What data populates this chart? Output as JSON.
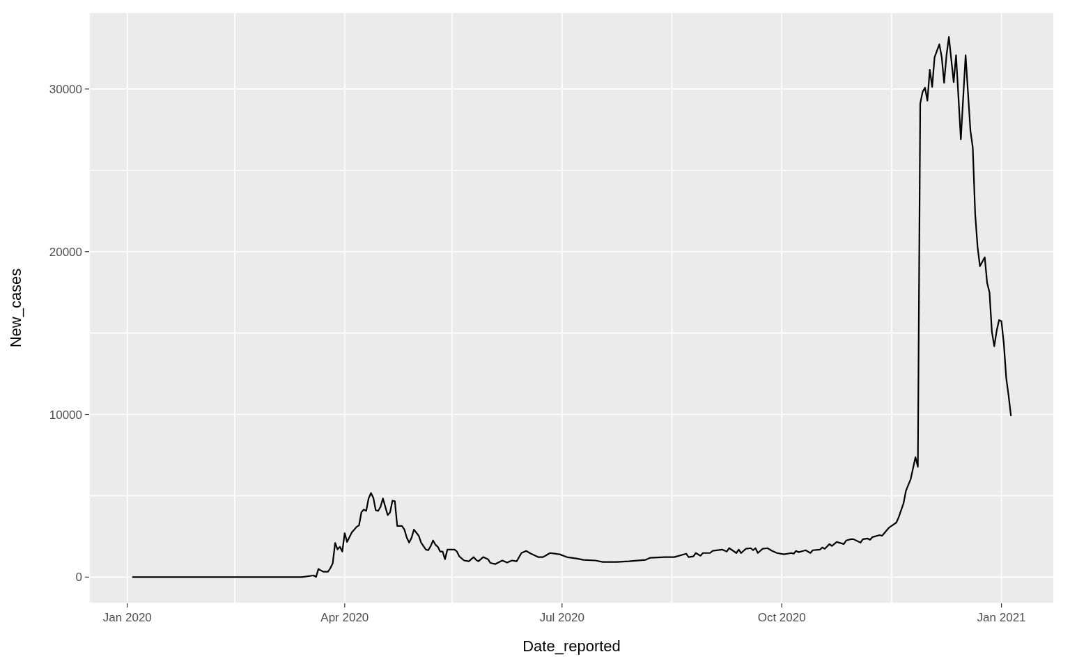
{
  "chart_data": {
    "type": "line",
    "xlabel": "Date_reported",
    "ylabel": "New_cases",
    "color": "#000000",
    "grid": true,
    "marker": "none",
    "line_style": "solid",
    "xlim": [
      "2019-12-16",
      "2021-01-23"
    ],
    "xticks": [
      {
        "value": "2020-01-01",
        "label": "Jan 2020"
      },
      {
        "value": "2020-02-15",
        "label": null
      },
      {
        "value": "2020-04-01",
        "label": "Apr 2020"
      },
      {
        "value": "2020-05-16",
        "label": null
      },
      {
        "value": "2020-07-01",
        "label": "Jul 2020"
      },
      {
        "value": "2020-08-16",
        "label": null
      },
      {
        "value": "2020-10-01",
        "label": "Oct 2020"
      },
      {
        "value": "2020-11-16",
        "label": null
      },
      {
        "value": "2021-01-01",
        "label": "Jan 2021"
      }
    ],
    "ylim": [
      -1610,
      34700
    ],
    "yticks": [
      0,
      {
        "value": 5000,
        "label": null
      },
      10000,
      {
        "value": 15000,
        "label": null
      },
      20000,
      {
        "value": 25000,
        "label": null
      },
      30000
    ],
    "x": [
      "2020-01-03",
      "2020-03-14",
      "2020-03-19",
      "2020-03-20",
      "2020-03-21",
      "2020-03-23",
      "2020-03-25",
      "2020-03-26",
      "2020-03-27",
      "2020-03-28",
      "2020-03-29",
      "2020-03-30",
      "2020-03-31",
      "2020-04-01",
      "2020-04-02",
      "2020-04-04",
      "2020-04-06",
      "2020-04-07",
      "2020-04-08",
      "2020-04-09",
      "2020-04-10",
      "2020-04-11",
      "2020-04-12",
      "2020-04-13",
      "2020-04-14",
      "2020-04-15",
      "2020-04-16",
      "2020-04-17",
      "2020-04-19",
      "2020-04-20",
      "2020-04-21",
      "2020-04-22",
      "2020-04-23",
      "2020-04-25",
      "2020-04-26",
      "2020-04-27",
      "2020-04-28",
      "2020-04-29",
      "2020-04-30",
      "2020-05-02",
      "2020-05-03",
      "2020-05-04",
      "2020-05-05",
      "2020-05-06",
      "2020-05-07",
      "2020-05-08",
      "2020-05-09",
      "2020-05-10",
      "2020-05-11",
      "2020-05-12",
      "2020-05-13",
      "2020-05-14",
      "2020-05-16",
      "2020-05-17",
      "2020-05-18",
      "2020-05-19",
      "2020-05-21",
      "2020-05-23",
      "2020-05-25",
      "2020-05-26",
      "2020-05-27",
      "2020-05-29",
      "2020-05-31",
      "2020-06-01",
      "2020-06-03",
      "2020-06-06",
      "2020-06-08",
      "2020-06-10",
      "2020-06-12",
      "2020-06-14",
      "2020-06-16",
      "2020-06-18",
      "2020-06-21",
      "2020-06-23",
      "2020-06-24",
      "2020-06-26",
      "2020-06-28",
      "2020-06-30",
      "2020-07-03",
      "2020-07-07",
      "2020-07-10",
      "2020-07-15",
      "2020-07-18",
      "2020-07-24",
      "2020-07-29",
      "2020-08-05",
      "2020-08-07",
      "2020-08-13",
      "2020-08-17",
      "2020-08-22",
      "2020-08-23",
      "2020-08-25",
      "2020-08-26",
      "2020-08-28",
      "2020-08-29",
      "2020-09-01",
      "2020-09-02",
      "2020-09-06",
      "2020-09-08",
      "2020-09-09",
      "2020-09-12",
      "2020-09-13",
      "2020-09-14",
      "2020-09-16",
      "2020-09-18",
      "2020-09-19",
      "2020-09-20",
      "2020-09-21",
      "2020-09-23",
      "2020-09-25",
      "2020-09-27",
      "2020-09-29",
      "2020-10-02",
      "2020-10-05",
      "2020-10-06",
      "2020-10-07",
      "2020-10-08",
      "2020-10-10",
      "2020-10-11",
      "2020-10-13",
      "2020-10-14",
      "2020-10-17",
      "2020-10-18",
      "2020-10-19",
      "2020-10-21",
      "2020-10-22",
      "2020-10-24",
      "2020-10-27",
      "2020-10-28",
      "2020-10-30",
      "2020-10-31",
      "2020-11-03",
      "2020-11-04",
      "2020-11-06",
      "2020-11-07",
      "2020-11-08",
      "2020-11-11",
      "2020-11-12",
      "2020-11-15",
      "2020-11-18",
      "2020-11-19",
      "2020-11-21",
      "2020-11-22",
      "2020-11-24",
      "2020-11-26",
      "2020-11-27",
      "2020-11-28",
      "2020-11-29",
      "2020-11-30",
      "2020-12-01",
      "2020-12-02",
      "2020-12-03",
      "2020-12-04",
      "2020-12-06",
      "2020-12-07",
      "2020-12-08",
      "2020-12-09",
      "2020-12-10",
      "2020-12-12",
      "2020-12-13",
      "2020-12-15",
      "2020-12-17",
      "2020-12-19",
      "2020-12-20",
      "2020-12-21",
      "2020-12-22",
      "2020-12-23",
      "2020-12-25",
      "2020-12-26",
      "2020-12-27",
      "2020-12-28",
      "2020-12-29",
      "2020-12-30",
      "2020-12-31",
      "2021-01-01",
      "2021-01-02",
      "2021-01-03",
      "2021-01-04",
      "2021-01-05"
    ],
    "values": [
      0,
      0,
      100,
      10,
      500,
      330,
      330,
      550,
      850,
      2100,
      1700,
      1860,
      1570,
      2700,
      2160,
      2750,
      3090,
      3180,
      3980,
      4150,
      4070,
      4830,
      5170,
      4870,
      4110,
      4070,
      4320,
      4830,
      3810,
      3980,
      4700,
      4660,
      3140,
      3140,
      2920,
      2420,
      2120,
      2420,
      2920,
      2540,
      2120,
      1900,
      1690,
      1650,
      1900,
      2250,
      1990,
      1860,
      1570,
      1570,
      1100,
      1690,
      1690,
      1690,
      1570,
      1270,
      1020,
      970,
      1230,
      1060,
      970,
      1230,
      1100,
      870,
      800,
      1020,
      890,
      1020,
      970,
      1480,
      1610,
      1440,
      1230,
      1230,
      1310,
      1480,
      1440,
      1400,
      1230,
      1140,
      1060,
      1020,
      930,
      930,
      970,
      1060,
      1190,
      1230,
      1230,
      1440,
      1230,
      1270,
      1480,
      1310,
      1480,
      1480,
      1610,
      1690,
      1570,
      1780,
      1480,
      1690,
      1480,
      1740,
      1780,
      1650,
      1780,
      1480,
      1740,
      1780,
      1610,
      1480,
      1400,
      1480,
      1440,
      1610,
      1530,
      1610,
      1650,
      1480,
      1650,
      1690,
      1820,
      1740,
      2030,
      1910,
      2160,
      2030,
      2250,
      2330,
      2330,
      2120,
      2330,
      2370,
      2290,
      2460,
      2580,
      2540,
      3050,
      3350,
      3690,
      4530,
      5300,
      6020,
      7370,
      6780,
      29110,
      29830,
      30080,
      29280,
      31190,
      30130,
      31950,
      32750,
      31950,
      30380,
      32080,
      33200,
      30420,
      32080,
      26910,
      32080,
      27460,
      26400,
      22330,
      20300,
      19110,
      19660,
      18090,
      17500,
      15080,
      14190,
      15130,
      15800,
      15720,
      14360,
      12250,
      11140,
      9900
    ]
  }
}
